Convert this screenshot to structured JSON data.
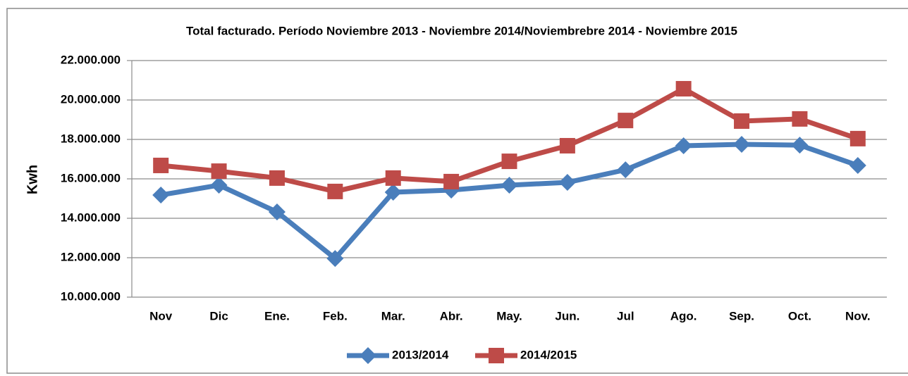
{
  "chart_data": {
    "type": "line",
    "title": "Total facturado. Período Noviembre 2013 - Noviembre 2014/Noviembrebre 2014 - Noviembre 2015",
    "y_label": "Kwh",
    "categories": [
      "Nov",
      "Dic",
      "Ene.",
      "Feb.",
      "Mar.",
      "Abr.",
      "May.",
      "Jun.",
      "Jul",
      "Ago.",
      "Sep.",
      "Oct.",
      "Nov."
    ],
    "series": [
      {
        "name": "2013/2014",
        "color": "#4a7ebb",
        "marker": "diamond",
        "values": [
          15180000,
          15680000,
          14320000,
          11960000,
          15320000,
          15430000,
          15680000,
          15820000,
          16460000,
          17680000,
          17750000,
          17710000,
          16680000
        ]
      },
      {
        "name": "2014/2015",
        "color": "#be4b48",
        "marker": "square",
        "values": [
          16680000,
          16390000,
          16040000,
          15360000,
          16040000,
          15860000,
          16890000,
          17680000,
          18960000,
          20570000,
          18930000,
          19040000,
          18040000
        ]
      }
    ],
    "ylim": [
      10000000,
      22000000
    ],
    "yticks": [
      {
        "value": 10000000,
        "label": "10.000.000"
      },
      {
        "value": 12000000,
        "label": "12.000.000"
      },
      {
        "value": 14000000,
        "label": "14.000.000"
      },
      {
        "value": 16000000,
        "label": "16.000.000"
      },
      {
        "value": 18000000,
        "label": "18.000.000"
      },
      {
        "value": 20000000,
        "label": "20.000.000"
      },
      {
        "value": 22000000,
        "label": "22.000.000"
      }
    ],
    "grid": true,
    "legend": "bottom"
  }
}
